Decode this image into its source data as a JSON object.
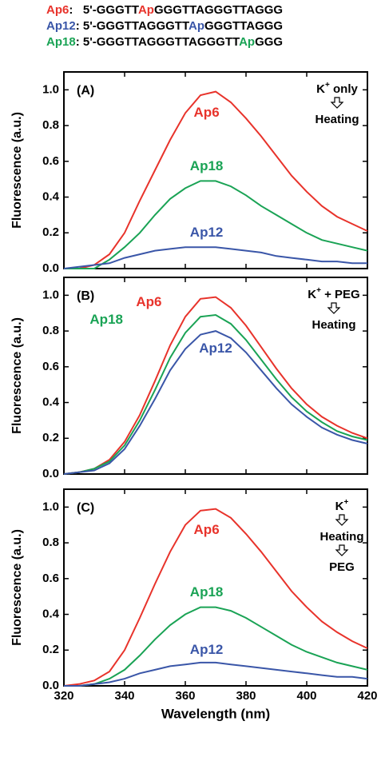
{
  "header": {
    "lines": [
      [
        {
          "text": "Ap6",
          "color": "#e8332b"
        },
        {
          "text": ":   5'-GGGTT"
        },
        {
          "text": "Ap",
          "color": "#e8332b"
        },
        {
          "text": "GGGTTAGGGTTAGGG"
        }
      ],
      [
        {
          "text": "Ap12",
          "color": "#3a56a8"
        },
        {
          "text": ": 5'-GGGTTAGGGTT"
        },
        {
          "text": "Ap",
          "color": "#3a56a8"
        },
        {
          "text": "GGGTTAGGG"
        }
      ],
      [
        {
          "text": "Ap18",
          "color": "#1aa355"
        },
        {
          "text": ": 5'-GGGTTAGGGTTAGGGTT"
        },
        {
          "text": "Ap",
          "color": "#1aa355"
        },
        {
          "text": "GGG"
        }
      ]
    ]
  },
  "chart_data": [
    {
      "type": "line",
      "panel_label": "(A)",
      "y_label": "Fluorescence (a.u.)",
      "annotation": [
        {
          "base": "K",
          "sup": "+",
          "rest": " only"
        },
        "Heating"
      ],
      "x": [
        320,
        325,
        330,
        335,
        340,
        345,
        350,
        355,
        360,
        365,
        370,
        375,
        380,
        385,
        390,
        395,
        400,
        405,
        410,
        415,
        420
      ],
      "series": [
        {
          "name": "Ap6",
          "color": "#e8332b",
          "values": [
            0,
            0,
            0.02,
            0.08,
            0.2,
            0.38,
            0.55,
            0.72,
            0.87,
            0.97,
            0.99,
            0.93,
            0.84,
            0.74,
            0.63,
            0.52,
            0.43,
            0.35,
            0.29,
            0.25,
            0.21
          ]
        },
        {
          "name": "Ap18",
          "color": "#1aa355",
          "values": [
            0,
            0,
            0,
            0.05,
            0.12,
            0.2,
            0.3,
            0.39,
            0.45,
            0.49,
            0.49,
            0.46,
            0.41,
            0.35,
            0.3,
            0.25,
            0.2,
            0.16,
            0.14,
            0.12,
            0.1
          ]
        },
        {
          "name": "Ap12",
          "color": "#3a56a8",
          "values": [
            0,
            0.01,
            0.02,
            0.03,
            0.06,
            0.08,
            0.1,
            0.11,
            0.12,
            0.12,
            0.12,
            0.11,
            0.1,
            0.09,
            0.07,
            0.06,
            0.05,
            0.04,
            0.04,
            0.03,
            0.03
          ]
        }
      ],
      "xlim": [
        320,
        420
      ],
      "xticks": [
        320,
        340,
        360,
        380,
        400,
        420
      ],
      "ylim": [
        0,
        1.1
      ],
      "yticks": [
        {
          "value": 0,
          "label": "0.0"
        },
        {
          "value": 0.2,
          "label": "0.2"
        },
        {
          "value": 0.4,
          "label": "0.4"
        },
        {
          "value": 0.6,
          "label": "0.6"
        },
        {
          "value": 0.8,
          "label": "0.8"
        },
        {
          "value": 1,
          "label": "1.0"
        }
      ]
    },
    {
      "type": "line",
      "panel_label": "(B)",
      "y_label": "Fluorescence (a.u.)",
      "annotation": [
        {
          "base": "K",
          "sup": "+",
          "rest": " + PEG"
        },
        "Heating"
      ],
      "x": [
        320,
        325,
        330,
        335,
        340,
        345,
        350,
        355,
        360,
        365,
        370,
        375,
        380,
        385,
        390,
        395,
        400,
        405,
        410,
        415,
        420
      ],
      "series": [
        {
          "name": "Ap6",
          "color": "#e8332b",
          "values": [
            0,
            0.01,
            0.03,
            0.08,
            0.18,
            0.33,
            0.52,
            0.72,
            0.88,
            0.98,
            0.99,
            0.93,
            0.83,
            0.71,
            0.59,
            0.48,
            0.39,
            0.32,
            0.27,
            0.23,
            0.2
          ]
        },
        {
          "name": "Ap18",
          "color": "#1aa355",
          "values": [
            0,
            0.01,
            0.03,
            0.07,
            0.16,
            0.3,
            0.47,
            0.65,
            0.79,
            0.88,
            0.89,
            0.84,
            0.75,
            0.64,
            0.53,
            0.43,
            0.35,
            0.29,
            0.24,
            0.21,
            0.19
          ]
        },
        {
          "name": "Ap12",
          "color": "#3a56a8",
          "values": [
            0,
            0.01,
            0.02,
            0.06,
            0.14,
            0.27,
            0.42,
            0.58,
            0.7,
            0.78,
            0.8,
            0.76,
            0.68,
            0.58,
            0.48,
            0.39,
            0.32,
            0.26,
            0.22,
            0.19,
            0.17
          ]
        }
      ],
      "xlim": [
        320,
        420
      ],
      "xticks": [
        320,
        340,
        360,
        380,
        400,
        420
      ],
      "ylim": [
        0,
        1.1
      ],
      "yticks": [
        {
          "value": 0,
          "label": "0.0"
        },
        {
          "value": 0.2,
          "label": "0.2"
        },
        {
          "value": 0.4,
          "label": "0.4"
        },
        {
          "value": 0.6,
          "label": "0.6"
        },
        {
          "value": 0.8,
          "label": "0.8"
        },
        {
          "value": 1,
          "label": "1.0"
        }
      ]
    },
    {
      "type": "line",
      "panel_label": "(C)",
      "y_label": "Fluorescence (a.u.)",
      "x_label": "Wavelength (nm)",
      "annotation": [
        {
          "base": "K",
          "sup": "+"
        },
        "Heating",
        "PEG"
      ],
      "x": [
        320,
        325,
        330,
        335,
        340,
        345,
        350,
        355,
        360,
        365,
        370,
        375,
        380,
        385,
        390,
        395,
        400,
        405,
        410,
        415,
        420
      ],
      "series": [
        {
          "name": "Ap6",
          "color": "#e8332b",
          "values": [
            0,
            0.01,
            0.03,
            0.08,
            0.2,
            0.38,
            0.57,
            0.75,
            0.9,
            0.98,
            0.99,
            0.94,
            0.85,
            0.75,
            0.64,
            0.53,
            0.44,
            0.36,
            0.3,
            0.25,
            0.21
          ]
        },
        {
          "name": "Ap18",
          "color": "#1aa355",
          "values": [
            0,
            0,
            0.01,
            0.04,
            0.09,
            0.17,
            0.26,
            0.34,
            0.4,
            0.44,
            0.44,
            0.42,
            0.38,
            0.33,
            0.28,
            0.23,
            0.19,
            0.16,
            0.13,
            0.11,
            0.09
          ]
        },
        {
          "name": "Ap12",
          "color": "#3a56a8",
          "values": [
            0,
            0,
            0.01,
            0.02,
            0.04,
            0.07,
            0.09,
            0.11,
            0.12,
            0.13,
            0.13,
            0.12,
            0.11,
            0.1,
            0.09,
            0.08,
            0.07,
            0.06,
            0.05,
            0.05,
            0.04
          ]
        }
      ],
      "xlim": [
        320,
        420
      ],
      "xticks": [
        320,
        340,
        360,
        380,
        400,
        420
      ],
      "xtick_labels": true,
      "ylim": [
        0,
        1.1
      ],
      "yticks": [
        {
          "value": 0,
          "label": "0.0"
        },
        {
          "value": 0.2,
          "label": "0.2"
        },
        {
          "value": 0.4,
          "label": "0.4"
        },
        {
          "value": 0.6,
          "label": "0.6"
        },
        {
          "value": 0.8,
          "label": "0.8"
        },
        {
          "value": 1,
          "label": "1.0"
        }
      ]
    }
  ]
}
